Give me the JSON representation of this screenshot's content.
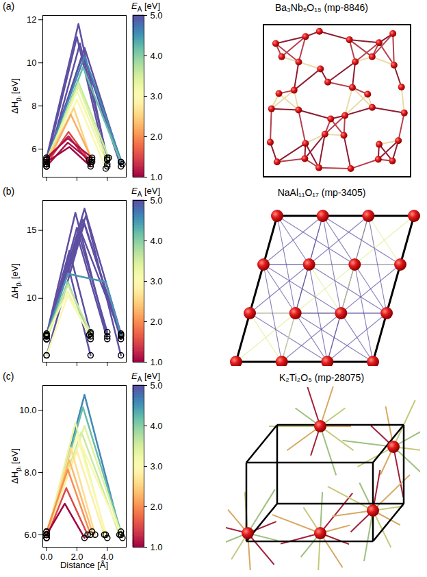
{
  "chart_data": [
    {
      "type": "line",
      "panel": "(a)",
      "title": "Ba₃Nb₅O₁₅ (mp-8846)",
      "ylabel": {
        "main": "ΔH",
        "sub": "pᵢ",
        "unit": "[eV]"
      },
      "xlim": [
        -0.25,
        5.25
      ],
      "xticks": [
        0,
        2,
        4
      ],
      "ylim": [
        4.7,
        12.2
      ],
      "yticks": [
        6,
        8,
        10,
        12
      ],
      "tick_labels": "y",
      "marker": "circle",
      "colorbar": {
        "label": "E",
        "label_sub": "A",
        "label_unit": "[eV]",
        "range": [
          1,
          5
        ],
        "ticks": [
          1,
          2,
          3,
          4,
          5
        ]
      },
      "series": [
        {
          "E_A": 5,
          "x": [
            0,
            2.1,
            4.0
          ],
          "values": [
            5.6,
            11.8,
            5.5
          ]
        },
        {
          "E_A": 5,
          "x": [
            0,
            2.0,
            4.0
          ],
          "values": [
            5.4,
            11.2,
            5.2
          ]
        },
        {
          "E_A": 5,
          "x": [
            0,
            2.2,
            4.0
          ],
          "values": [
            5.2,
            10.9,
            5.6
          ]
        },
        {
          "E_A": 5,
          "x": [
            0,
            2.5,
            4.9
          ],
          "values": [
            5.3,
            10.7,
            5.4
          ]
        },
        {
          "E_A": 5,
          "x": [
            0,
            2.4,
            4.9
          ],
          "values": [
            5.5,
            10.4,
            5.2
          ]
        },
        {
          "E_A": 4.6,
          "x": [
            0,
            2.5,
            5.0
          ],
          "values": [
            5.5,
            10.3,
            5.3
          ]
        },
        {
          "E_A": 4.2,
          "x": [
            0,
            2.4,
            4.9
          ],
          "values": [
            5.3,
            9.8,
            5.4
          ]
        },
        {
          "E_A": 3.6,
          "x": [
            0,
            2.1,
            4.1
          ],
          "values": [
            5.4,
            9.1,
            5.6
          ]
        },
        {
          "E_A": 3.4,
          "x": [
            0,
            2.1,
            4.0
          ],
          "values": [
            5.5,
            8.9,
            5.5
          ]
        },
        {
          "E_A": 3.2,
          "x": [
            0,
            2.0,
            4.0
          ],
          "values": [
            5.3,
            8.7,
            5.3
          ]
        },
        {
          "E_A": 3.0,
          "x": [
            0,
            2.0,
            3.9
          ],
          "values": [
            5.2,
            8.3,
            5.1
          ]
        },
        {
          "E_A": 2.5,
          "x": [
            0,
            1.8,
            3.0
          ],
          "values": [
            5.5,
            7.9,
            5.4
          ]
        },
        {
          "E_A": 2.2,
          "x": [
            0,
            1.6,
            3.0
          ],
          "values": [
            5.3,
            7.6,
            5.5
          ]
        },
        {
          "E_A": 1.5,
          "x": [
            0,
            1.45,
            2.9
          ],
          "values": [
            5.3,
            6.8,
            5.4
          ]
        },
        {
          "E_A": 1.2,
          "x": [
            0,
            1.45,
            2.9
          ],
          "values": [
            5.5,
            6.6,
            5.3
          ]
        },
        {
          "E_A": 1.1,
          "x": [
            0,
            1.4,
            3.0
          ],
          "values": [
            5.6,
            6.5,
            5.6
          ]
        },
        {
          "E_A": 1.1,
          "x": [
            0,
            1.4,
            2.8
          ],
          "values": [
            5.2,
            6.3,
            5.5
          ]
        },
        {
          "E_A": 1.0,
          "x": [
            0,
            1.5,
            2.9
          ],
          "values": [
            5.4,
            6.1,
            5.2
          ]
        }
      ]
    },
    {
      "type": "line",
      "panel": "(b)",
      "title": "NaAl₁₁O₁₇ (mp-3405)",
      "ylabel": {
        "main": "ΔH",
        "sub": "pᵢ",
        "unit": "[eV]"
      },
      "xlim": [
        -0.25,
        5.25
      ],
      "xticks": [
        0,
        2,
        4
      ],
      "ylim": [
        5.3,
        17.2
      ],
      "yticks": [
        10,
        15
      ],
      "tick_labels": "y",
      "marker": "circle",
      "colorbar": {
        "label": "E",
        "label_sub": "A",
        "label_unit": "[eV]",
        "range": [
          1,
          5
        ],
        "ticks": [
          1,
          2,
          3,
          4,
          5
        ]
      },
      "series": [
        {
          "E_A": 5,
          "x": [
            0,
            2.5,
            4.9
          ],
          "values": [
            7.0,
            16.6,
            7.4
          ]
        },
        {
          "E_A": 5,
          "x": [
            0,
            1.9,
            4.0
          ],
          "values": [
            7.3,
            16.3,
            7.2
          ]
        },
        {
          "E_A": 5,
          "x": [
            0,
            2.6,
            4.9
          ],
          "values": [
            7.4,
            16.1,
            5.8
          ]
        },
        {
          "E_A": 5,
          "x": [
            0,
            2.4,
            4.9
          ],
          "values": [
            7.3,
            15.8,
            7.0
          ]
        },
        {
          "E_A": 5,
          "x": [
            0,
            2.5,
            4.9
          ],
          "values": [
            7.2,
            15.5,
            7.2
          ]
        },
        {
          "E_A": 5,
          "x": [
            0,
            2.0,
            4.0
          ],
          "values": [
            7.0,
            15.2,
            7.5
          ]
        },
        {
          "E_A": 5,
          "x": [
            0,
            2.3,
            4.9
          ],
          "values": [
            5.8,
            14.8,
            7.3
          ]
        },
        {
          "E_A": 5,
          "x": [
            0,
            2.1,
            4.0
          ],
          "values": [
            7.3,
            14.3,
            7.0
          ]
        },
        {
          "E_A": 5,
          "x": [
            0,
            1.5,
            2.9
          ],
          "values": [
            7.3,
            13.5,
            7.4
          ]
        },
        {
          "E_A": 5,
          "x": [
            0,
            1.4,
            2.9
          ],
          "values": [
            7.0,
            12.5,
            5.8
          ]
        },
        {
          "E_A": 4.5,
          "x": [
            0,
            1.4,
            3.9,
            4.9
          ],
          "values": [
            7.3,
            11.8,
            11.2,
            7.3
          ]
        },
        {
          "E_A": 4.0,
          "x": [
            0,
            1.4,
            2.9
          ],
          "values": [
            7.2,
            11.2,
            7.0
          ]
        },
        {
          "E_A": 3.6,
          "x": [
            0,
            1.4,
            2.9
          ],
          "values": [
            7.0,
            11.0,
            7.5
          ]
        },
        {
          "E_A": 3.2,
          "x": [
            0,
            1.4,
            2.8
          ],
          "values": [
            7.3,
            10.5,
            7.3
          ]
        },
        {
          "E_A": 3.0,
          "x": [
            0,
            1.4,
            2.9
          ],
          "values": [
            5.8,
            10.2,
            7.2
          ]
        }
      ]
    },
    {
      "type": "line",
      "panel": "(c)",
      "title": "K₂Ti₂O₅ (mp-28075)",
      "ylabel": {
        "main": "ΔH",
        "sub": "pᵢ",
        "unit": "[eV]"
      },
      "xlabel": "Distance [Å]",
      "xlim": [
        -0.25,
        5.25
      ],
      "xticks": [
        0,
        2,
        4
      ],
      "ylim": [
        5.6,
        10.8
      ],
      "yticks": [
        6,
        8,
        10
      ],
      "marker": "circle",
      "colorbar": {
        "label": "E",
        "label_sub": "A",
        "label_unit": "[eV]",
        "range": [
          1,
          5
        ],
        "ticks": [
          1,
          2,
          3,
          4,
          5
        ]
      },
      "series": [
        {
          "E_A": 4.6,
          "x": [
            0,
            2.5,
            4.9
          ],
          "values": [
            5.9,
            10.5,
            6.0
          ]
        },
        {
          "E_A": 4.2,
          "x": [
            0,
            2.4,
            4.9
          ],
          "values": [
            6.0,
            10.1,
            6.1
          ]
        },
        {
          "E_A": 3.6,
          "x": [
            0,
            2.3,
            4.8
          ],
          "values": [
            6.1,
            9.3,
            6.0
          ]
        },
        {
          "E_A": 3.4,
          "x": [
            0,
            2.5,
            5.0
          ],
          "values": [
            6.0,
            9.5,
            5.9
          ]
        },
        {
          "E_A": 3.3,
          "x": [
            0,
            1.9,
            3.9
          ],
          "values": [
            6.0,
            9.6,
            6.0
          ]
        },
        {
          "E_A": 3.1,
          "x": [
            0,
            2.0,
            4.0
          ],
          "values": [
            5.9,
            9.2,
            5.9
          ]
        },
        {
          "E_A": 3.0,
          "x": [
            0,
            2.2,
            4.9
          ],
          "values": [
            6.1,
            9.0,
            6.0
          ]
        },
        {
          "E_A": 2.8,
          "x": [
            0,
            2.0,
            3.8
          ],
          "values": [
            6.0,
            8.7,
            6.0
          ]
        },
        {
          "E_A": 2.6,
          "x": [
            0,
            1.6,
            3.2
          ],
          "values": [
            5.9,
            8.8,
            6.0
          ]
        },
        {
          "E_A": 2.3,
          "x": [
            0,
            1.5,
            3.0
          ],
          "values": [
            6.0,
            8.4,
            6.1
          ]
        },
        {
          "E_A": 2.0,
          "x": [
            0,
            1.4,
            2.9
          ],
          "values": [
            6.1,
            8.1,
            6.0
          ]
        },
        {
          "E_A": 1.5,
          "x": [
            0,
            1.3,
            2.7
          ],
          "values": [
            5.9,
            7.5,
            6.0
          ]
        },
        {
          "E_A": 1.0,
          "x": [
            0,
            1.2,
            2.5
          ],
          "values": [
            6.0,
            7.0,
            5.9
          ]
        }
      ]
    }
  ]
}
